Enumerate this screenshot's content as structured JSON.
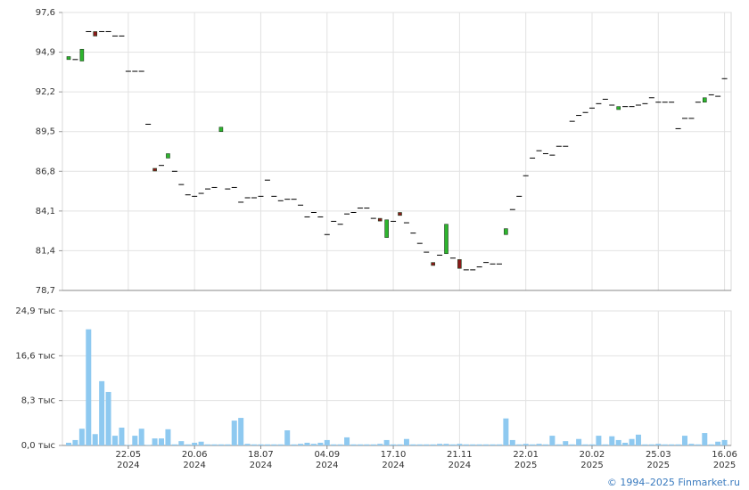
{
  "chart_data": [
    {
      "type": "candlestick",
      "open": [
        94.4,
        94.4,
        94.3,
        96.3,
        96.3,
        96.3,
        96.3,
        96.0,
        96.0,
        93.6,
        93.6,
        93.6,
        90.0,
        87.0,
        87.2,
        87.7,
        86.8,
        85.9,
        85.2,
        85.1,
        85.3,
        85.6,
        85.7,
        89.5,
        85.6,
        85.7,
        84.7,
        85.0,
        85.0,
        85.1,
        86.2,
        85.1,
        84.8,
        84.9,
        84.9,
        84.5,
        83.7,
        84.0,
        83.7,
        82.5,
        83.4,
        83.2,
        83.9,
        84.0,
        84.3,
        84.3,
        83.6,
        83.6,
        82.3,
        83.4,
        84.0,
        83.3,
        82.6,
        81.9,
        81.3,
        80.6,
        81.1,
        81.2,
        80.9,
        80.8,
        80.1,
        80.1,
        80.3,
        80.6,
        80.5,
        80.5,
        82.5,
        84.2,
        85.1,
        86.5,
        87.7,
        88.2,
        88.0,
        87.9,
        88.5,
        88.5,
        90.2,
        90.6,
        90.8,
        91.1,
        91.4,
        91.7,
        91.3,
        91.0,
        91.2,
        91.2,
        91.3,
        91.4,
        91.8,
        91.5,
        91.5,
        91.5,
        89.7,
        90.4,
        90.4,
        91.5,
        91.5,
        92.0,
        91.9,
        93.1
      ],
      "close": [
        94.6,
        94.4,
        95.1,
        96.3,
        96.0,
        96.3,
        96.3,
        96.0,
        96.0,
        93.6,
        93.6,
        93.6,
        90.0,
        86.9,
        87.2,
        88.0,
        86.8,
        85.9,
        85.2,
        85.1,
        85.3,
        85.6,
        85.7,
        89.8,
        85.6,
        85.7,
        84.7,
        85.0,
        85.0,
        85.1,
        86.2,
        85.1,
        84.8,
        84.9,
        84.9,
        84.5,
        83.7,
        84.0,
        83.7,
        82.5,
        83.4,
        83.2,
        83.9,
        84.0,
        84.3,
        84.3,
        83.6,
        83.5,
        83.5,
        83.4,
        83.8,
        83.3,
        82.6,
        81.9,
        81.3,
        80.4,
        81.1,
        83.2,
        80.9,
        80.2,
        80.1,
        80.1,
        80.3,
        80.6,
        80.5,
        80.5,
        82.9,
        84.2,
        85.1,
        86.5,
        87.7,
        88.2,
        88.0,
        87.9,
        88.5,
        88.5,
        90.2,
        90.6,
        90.8,
        91.1,
        91.4,
        91.7,
        91.3,
        91.2,
        91.2,
        91.2,
        91.3,
        91.4,
        91.8,
        91.5,
        91.5,
        91.5,
        89.7,
        90.4,
        90.4,
        91.5,
        91.8,
        92.0,
        91.9,
        93.1
      ],
      "up_color": "#2db52d",
      "down_color": "#8b1a1a",
      "flat_color": "#000000",
      "ylim": [
        78.7,
        97.6
      ],
      "yticks": [
        {
          "value": 78.7,
          "label": "78,7"
        },
        {
          "value": 81.4,
          "label": "81,4"
        },
        {
          "value": 84.1,
          "label": "84,1"
        },
        {
          "value": 86.8,
          "label": "86,8"
        },
        {
          "value": 89.5,
          "label": "89,5"
        },
        {
          "value": 92.2,
          "label": "92,2"
        },
        {
          "value": 94.9,
          "label": "94,9"
        },
        {
          "value": 97.6,
          "label": "97,6"
        }
      ],
      "grid": true
    },
    {
      "type": "bar",
      "categories": [
        null,
        null,
        null,
        null,
        null,
        null,
        null,
        null,
        null,
        "22.05 2024",
        null,
        null,
        null,
        null,
        null,
        null,
        null,
        null,
        null,
        "20.06 2024",
        null,
        null,
        null,
        null,
        null,
        null,
        null,
        null,
        null,
        "18.07 2024",
        null,
        null,
        null,
        null,
        null,
        null,
        null,
        null,
        null,
        "04.09 2024",
        null,
        null,
        null,
        null,
        null,
        null,
        null,
        null,
        null,
        "17.10 2024",
        null,
        null,
        null,
        null,
        null,
        null,
        null,
        null,
        null,
        "21.11 2024",
        null,
        null,
        null,
        null,
        null,
        null,
        null,
        null,
        null,
        "22.01 2025",
        null,
        null,
        null,
        null,
        null,
        null,
        null,
        null,
        null,
        "20.02 2025",
        null,
        null,
        null,
        null,
        null,
        null,
        null,
        null,
        null,
        "25.03 2025",
        null,
        null,
        null,
        null,
        null,
        null,
        null,
        null,
        null,
        "16.06 2025"
      ],
      "values": [
        0.5,
        1.0,
        3.1,
        21.5,
        2.1,
        11.9,
        9.9,
        1.8,
        3.3,
        0.1,
        1.8,
        3.1,
        0.1,
        1.3,
        1.3,
        3.0,
        0.2,
        0.8,
        0.2,
        0.5,
        0.7,
        0.2,
        0.2,
        0.2,
        0.2,
        4.6,
        5.1,
        0.3,
        0.2,
        0.2,
        0.2,
        0.2,
        0.2,
        2.8,
        0.2,
        0.3,
        0.5,
        0.3,
        0.5,
        1.0,
        0.2,
        0.2,
        1.5,
        0.2,
        0.2,
        0.2,
        0.2,
        0.3,
        1.0,
        0.2,
        0.2,
        1.2,
        0.2,
        0.2,
        0.2,
        0.2,
        0.3,
        0.3,
        0.2,
        0.3,
        0.2,
        0.2,
        0.2,
        0.2,
        0.2,
        0.2,
        5.0,
        1.0,
        0.2,
        0.3,
        0.2,
        0.3,
        0.2,
        1.8,
        0.2,
        0.8,
        0.2,
        1.2,
        0.2,
        0.2,
        1.8,
        0.2,
        1.7,
        1.0,
        0.5,
        1.2,
        2.0,
        0.2,
        0.2,
        0.3,
        0.2,
        0.2,
        0.2,
        1.8,
        0.3,
        0.2,
        2.3,
        0.2,
        0.7,
        1.0
      ],
      "color": "#8ec9f0",
      "ylim": [
        0,
        24.9
      ],
      "yticks": [
        {
          "value": 0,
          "label": "0,0 тыс"
        },
        {
          "value": 8.3,
          "label": "8,3 тыс"
        },
        {
          "value": 16.6,
          "label": "16,6 тыс"
        },
        {
          "value": 24.9,
          "label": "24,9 тыс"
        }
      ],
      "grid": true
    }
  ],
  "footer": {
    "copyright": "© 1994–2025 Finmarket.ru"
  }
}
